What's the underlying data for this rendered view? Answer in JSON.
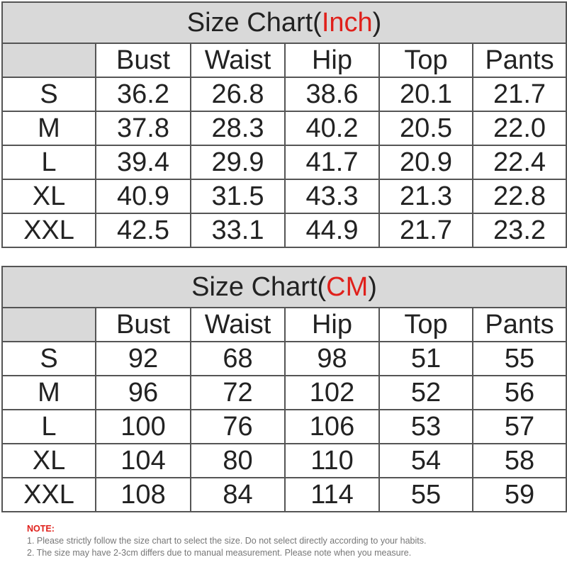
{
  "tables": [
    {
      "title": {
        "before": "Size Chart(",
        "unit": "Inch",
        "after": ")"
      },
      "header": [
        "Bust",
        "Waist",
        "Hip",
        "Top",
        "Pants"
      ],
      "rows": [
        [
          "S",
          "36.2",
          "26.8",
          "38.6",
          "20.1",
          "21.7"
        ],
        [
          "M",
          "37.8",
          "28.3",
          "40.2",
          "20.5",
          "22.0"
        ],
        [
          "L",
          "39.4",
          "29.9",
          "41.7",
          "20.9",
          "22.4"
        ],
        [
          "XL",
          "40.9",
          "31.5",
          "43.3",
          "21.3",
          "22.8"
        ],
        [
          "XXL",
          "42.5",
          "33.1",
          "44.9",
          "21.7",
          "23.2"
        ]
      ]
    },
    {
      "title": {
        "before": "Size Chart(",
        "unit": "CM",
        "after": ")"
      },
      "header": [
        "Bust",
        "Waist",
        "Hip",
        "Top",
        "Pants"
      ],
      "rows": [
        [
          "S",
          "92",
          "68",
          "98",
          "51",
          "55"
        ],
        [
          "M",
          "96",
          "72",
          "102",
          "52",
          "56"
        ],
        [
          "L",
          "100",
          "76",
          "106",
          "53",
          "57"
        ],
        [
          "XL",
          "104",
          "80",
          "110",
          "54",
          "58"
        ],
        [
          "XXL",
          "108",
          "84",
          "114",
          "55",
          "59"
        ]
      ]
    }
  ],
  "note": {
    "label": "NOTE:",
    "lines": [
      "1. Please strictly follow the size chart  to select the size. Do not select directly according to your habits.",
      "2. The size may have 2-3cm differs due to manual measurement. Please note when you measure."
    ]
  }
}
